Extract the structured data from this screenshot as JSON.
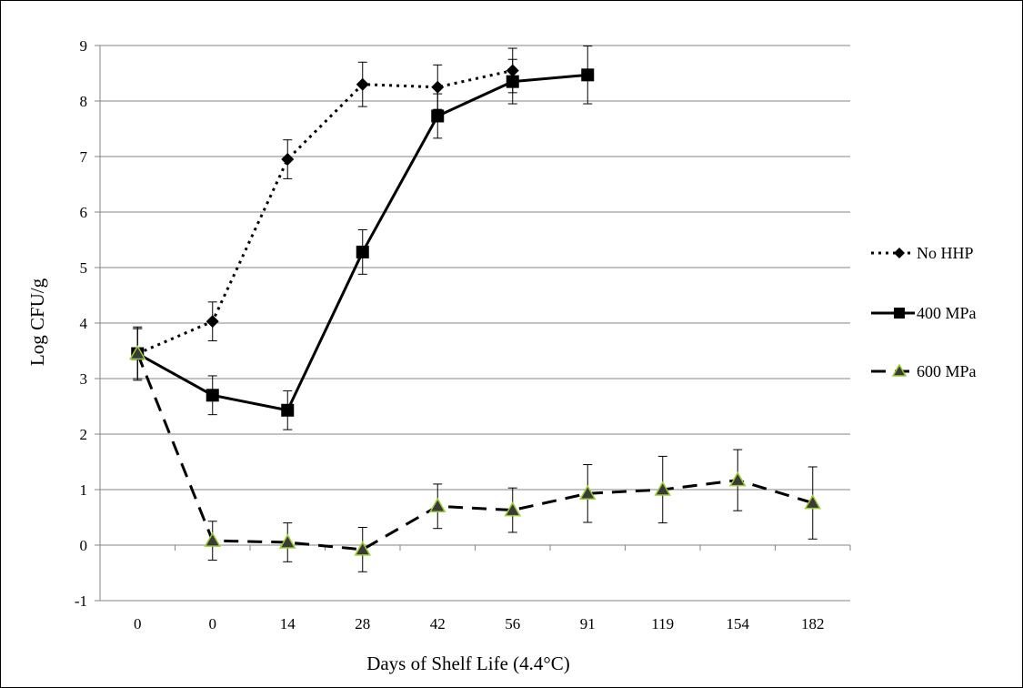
{
  "chart_data": {
    "type": "line",
    "title": "",
    "xlabel": "Days of Shelf Life (4.4°C)",
    "ylabel": "Log CFU/g",
    "categories": [
      "0",
      "0",
      "14",
      "28",
      "42",
      "56",
      "91",
      "119",
      "154",
      "182"
    ],
    "ylim": [
      -1,
      9
    ],
    "yticks": [
      -1,
      0,
      1,
      2,
      3,
      4,
      5,
      6,
      7,
      8,
      9
    ],
    "grid": "horizontal",
    "legend_position": "right",
    "series": [
      {
        "name": "No HHP",
        "line_style": "dotted",
        "marker": "diamond",
        "color": "#000000",
        "values": [
          3.45,
          4.03,
          6.95,
          8.3,
          8.25,
          8.55,
          null,
          null,
          null,
          null
        ],
        "errors": [
          0.45,
          0.35,
          0.35,
          0.4,
          0.4,
          0.4,
          null,
          null,
          null,
          null
        ]
      },
      {
        "name": "400 MPa",
        "line_style": "solid",
        "marker": "square",
        "color": "#000000",
        "values": [
          3.45,
          2.7,
          2.43,
          5.28,
          7.73,
          8.35,
          8.47,
          null,
          null,
          null
        ],
        "errors": [
          0.48,
          0.35,
          0.35,
          0.4,
          0.4,
          0.4,
          0.52,
          null,
          null,
          null
        ]
      },
      {
        "name": "600 MPa",
        "line_style": "dashed",
        "marker": "triangle",
        "color": "#000000",
        "marker_fill": "#3a3a3a",
        "marker_outline": "#9acd32",
        "values": [
          3.45,
          0.08,
          0.05,
          -0.08,
          0.7,
          0.63,
          0.93,
          1.0,
          1.17,
          0.76
        ],
        "errors": [
          0.45,
          0.35,
          0.35,
          0.4,
          0.4,
          0.4,
          0.52,
          0.6,
          0.55,
          0.65
        ]
      }
    ]
  }
}
